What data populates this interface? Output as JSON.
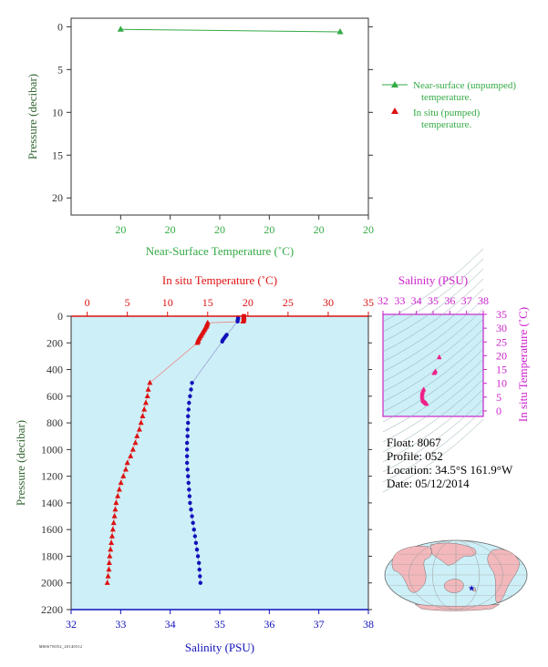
{
  "float_info": {
    "float": "Float: 8067",
    "profile": "Profile: 052",
    "location": "Location: 34.5°S 161.9°W",
    "date": "Date: 05/12/2014"
  },
  "footer_id": "M8067N052_20140512",
  "colors": {
    "green": "#33aa44",
    "red": "#dd1111",
    "blue": "#1111bb",
    "magenta": "#cc22cc",
    "plot_bg": "#cdeff7",
    "axis_dark": "#333333"
  },
  "chart_data": [
    {
      "id": "near_surface",
      "type": "line",
      "xlabel": "Near-Surface Temperature (˚C)",
      "ylabel": "Pressure (decibar)",
      "xlim": [
        19.99,
        20.05
      ],
      "ylim": [
        22,
        -1
      ],
      "x_ticks": [
        20.0,
        20.01,
        20.02,
        20.03,
        20.04,
        20.05
      ],
      "x_tick_labels": [
        "20",
        "20",
        "20",
        "20",
        "20",
        "20"
      ],
      "y_ticks": [
        0,
        5,
        10,
        15,
        20
      ],
      "y_tick_labels": [
        "0",
        "5",
        "10",
        "15",
        "20"
      ],
      "legend": [
        {
          "label_line1": "Near-surface (unpumped)",
          "label_line2": "temperature.",
          "marker": "line-triangle"
        },
        {
          "label_line1": "In situ (pumped)",
          "label_line2": "temperature.",
          "marker": "triangle"
        }
      ],
      "series": [
        {
          "name": "Near-surface (unpumped) temperature.",
          "x": [
            20.0,
            20.0443
          ],
          "y": [
            0.3,
            0.6
          ]
        }
      ]
    },
    {
      "id": "main_profile",
      "type": "scatter",
      "title_top": "In situ Temperature (˚C)",
      "xlabel": "Salinity (PSU)",
      "ylabel": "Pressure (decibar)",
      "temp_lim": [
        -2,
        35
      ],
      "temp_ticks": [
        0,
        5,
        10,
        15,
        20,
        25,
        30,
        35
      ],
      "sal_lim": [
        32,
        38
      ],
      "sal_ticks": [
        32,
        33,
        34,
        35,
        36,
        37,
        38
      ],
      "ylim": [
        2200,
        0
      ],
      "y_ticks": [
        0,
        200,
        400,
        600,
        800,
        1000,
        1200,
        1400,
        1600,
        1800,
        2000,
        2200
      ],
      "temperature": {
        "pressure": [
          5,
          10,
          20,
          30,
          40,
          50,
          60,
          70,
          80,
          90,
          100,
          110,
          120,
          130,
          140,
          150,
          160,
          170,
          180,
          190,
          200,
          500,
          550,
          600,
          650,
          700,
          750,
          800,
          850,
          900,
          950,
          1000,
          1050,
          1100,
          1150,
          1200,
          1250,
          1300,
          1350,
          1400,
          1450,
          1500,
          1550,
          1600,
          1650,
          1700,
          1750,
          1800,
          1850,
          1900,
          1950,
          2000
        ],
        "values": [
          19.5,
          19.5,
          19.5,
          19.5,
          19.4,
          15.0,
          14.9,
          14.9,
          14.8,
          14.7,
          14.6,
          14.5,
          14.4,
          14.3,
          14.2,
          14.1,
          14.0,
          13.9,
          13.8,
          13.8,
          13.7,
          7.8,
          7.6,
          7.5,
          7.3,
          7.1,
          6.9,
          6.7,
          6.5,
          6.2,
          6.0,
          5.7,
          5.4,
          5.0,
          4.8,
          4.5,
          4.2,
          4.0,
          3.8,
          3.6,
          3.5,
          3.4,
          3.3,
          3.2,
          3.1,
          3.0,
          2.9,
          2.8,
          2.75,
          2.7,
          2.6,
          2.5
        ],
        "surface_marker": {
          "pressure": 5,
          "value": 19.5
        }
      },
      "salinity": {
        "pressure": [
          10,
          20,
          30,
          40,
          140,
          150,
          160,
          170,
          180,
          190,
          500,
          550,
          600,
          650,
          700,
          750,
          800,
          850,
          900,
          950,
          1000,
          1050,
          1100,
          1150,
          1200,
          1250,
          1300,
          1350,
          1400,
          1450,
          1500,
          1550,
          1600,
          1650,
          1700,
          1750,
          1800,
          1850,
          1900,
          1950,
          2000
        ],
        "values": [
          35.37,
          35.37,
          35.36,
          35.36,
          35.14,
          35.12,
          35.1,
          35.08,
          35.06,
          35.05,
          34.44,
          34.42,
          34.4,
          34.38,
          34.37,
          34.36,
          34.36,
          34.35,
          34.35,
          34.34,
          34.34,
          34.34,
          34.34,
          34.35,
          34.36,
          34.37,
          34.38,
          34.39,
          34.4,
          34.42,
          34.44,
          34.46,
          34.48,
          34.5,
          34.52,
          34.54,
          34.56,
          34.58,
          34.59,
          34.6,
          34.61
        ]
      }
    },
    {
      "id": "ts_diagram",
      "type": "scatter",
      "title_top": "Salinity (PSU)",
      "ylabel": "In situ Temperature (˚C)",
      "xlim": [
        32,
        38
      ],
      "x_ticks": [
        32,
        33,
        34,
        35,
        36,
        37,
        38
      ],
      "ylim": [
        -2,
        35
      ],
      "y_ticks": [
        0,
        5,
        10,
        15,
        20,
        25,
        30,
        35
      ],
      "points": [
        [
          35.37,
          19.5
        ],
        [
          35.36,
          19.4
        ],
        [
          35.14,
          14.4
        ],
        [
          35.1,
          14.0
        ],
        [
          35.05,
          13.7
        ],
        [
          34.44,
          7.8
        ],
        [
          34.4,
          7.5
        ],
        [
          34.37,
          7.1
        ],
        [
          34.36,
          6.7
        ],
        [
          34.35,
          6.2
        ],
        [
          34.34,
          5.7
        ],
        [
          34.34,
          5.0
        ],
        [
          34.36,
          4.5
        ],
        [
          34.38,
          4.0
        ],
        [
          34.4,
          3.6
        ],
        [
          34.44,
          3.4
        ],
        [
          34.48,
          3.2
        ],
        [
          34.52,
          3.0
        ],
        [
          34.56,
          2.8
        ],
        [
          34.59,
          2.7
        ],
        [
          34.61,
          2.5
        ]
      ]
    },
    {
      "id": "location_map",
      "type": "map",
      "marker": {
        "lat": -34.5,
        "lon": -161.9,
        "symbol": "star"
      }
    }
  ]
}
